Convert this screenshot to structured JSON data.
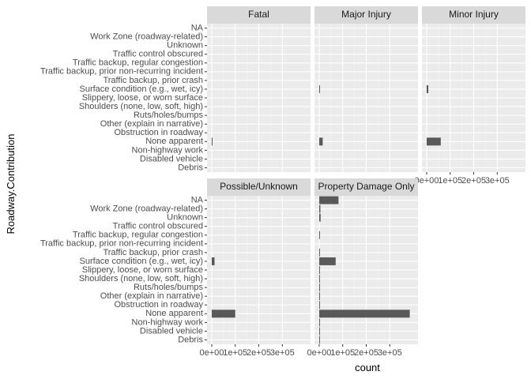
{
  "chart_data": {
    "type": "bar",
    "orientation": "horizontal",
    "facet_layout": "3 columns x 2 rows",
    "categories": [
      "NA",
      "Work Zone (roadway-related)",
      "Unknown",
      "Traffic control obscured",
      "Traffic backup, regular congestion",
      "Traffic backup, prior non-recurring incident",
      "Traffic backup, prior crash",
      "Surface condition (e.g., wet, icy)",
      "Slippery, loose, or worn surface",
      "Shoulders (none, low, soft, high)",
      "Ruts/holes/bumps",
      "Other (explain in narrative)",
      "Obstruction in roadway",
      "None apparent",
      "Non-highway work",
      "Disabled vehicle",
      "Debris"
    ],
    "x_ticks": [
      0,
      100000,
      200000,
      300000
    ],
    "x_tick_labels": [
      "0e+00",
      "1e+05",
      "2e+05",
      "3e+05"
    ],
    "xlim": [
      -20000,
      420000
    ],
    "xlabel": "count",
    "ylabel": "Roadway.Contribution",
    "grid": true,
    "panels": [
      {
        "name": "Fatal",
        "values": [
          0,
          0,
          0,
          0,
          0,
          0,
          0,
          0,
          0,
          0,
          0,
          0,
          0,
          500,
          0,
          0,
          0
        ]
      },
      {
        "name": "Major Injury",
        "values": [
          0,
          0,
          0,
          0,
          0,
          0,
          0,
          1500,
          0,
          0,
          0,
          0,
          0,
          15000,
          0,
          0,
          0
        ]
      },
      {
        "name": "Minor Injury",
        "values": [
          0,
          0,
          0,
          0,
          0,
          0,
          0,
          7000,
          0,
          0,
          0,
          0,
          0,
          60000,
          0,
          0,
          0
        ]
      },
      {
        "name": "Possible/Unknown",
        "values": [
          0,
          0,
          0,
          0,
          0,
          0,
          0,
          12000,
          0,
          0,
          0,
          0,
          0,
          100000,
          0,
          0,
          0
        ]
      },
      {
        "name": "Property Damage Only",
        "values": [
          82000,
          5000,
          6000,
          0,
          1500,
          0,
          1000,
          70000,
          500,
          500,
          500,
          500,
          1000,
          385000,
          500,
          500,
          1500
        ]
      }
    ]
  }
}
